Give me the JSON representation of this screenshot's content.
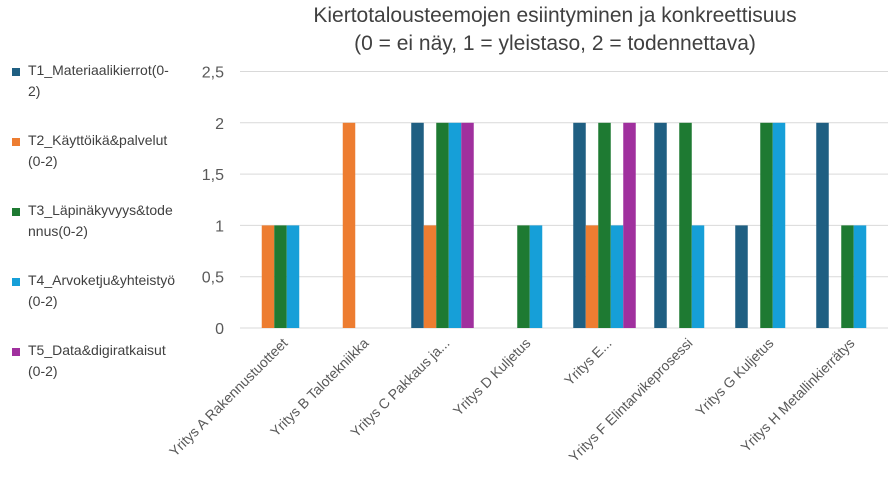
{
  "chart_data": {
    "type": "bar",
    "title": "Kiertotalousteemojen esiintyminen ja konkreettisuus",
    "subtitle": "(0 = ei näy, 1 = yleistaso, 2 = todennettava)",
    "xlabel": "",
    "ylabel": "",
    "ylim": [
      0,
      2.5
    ],
    "yticks": [
      "0",
      "0,5",
      "1",
      "1,5",
      "2",
      "2,5"
    ],
    "grid": true,
    "legend_position": "left",
    "categories": [
      "Yritys A Rakennustuotteet",
      "Yritys B Talotekniikka",
      "Yritys C Pakkaus ja...",
      "Yritys D Kuljetus",
      "Yritys E...",
      "Yritys F Elintarvikeprosessi",
      "Yritys G Kuljetus",
      "Yritys H Metallinkierrätys"
    ],
    "series": [
      {
        "name": "T1_Materiaalikierrot(0-2)",
        "color": "#1f5f82",
        "values": [
          0,
          0,
          2,
          0,
          2,
          2,
          1,
          2
        ]
      },
      {
        "name": "T2_Käyttöikä&palvelut(0-2)",
        "color": "#ed7d31",
        "values": [
          1,
          2,
          1,
          0,
          1,
          0,
          0,
          0
        ]
      },
      {
        "name": "T3_Läpinäkyvyys&todennus(0-2)",
        "color": "#1e7a32",
        "values": [
          1,
          0,
          2,
          1,
          2,
          2,
          2,
          1
        ]
      },
      {
        "name": "T4_Arvoketju&yhteistyö(0-2)",
        "color": "#169fd8",
        "values": [
          1,
          0,
          2,
          1,
          1,
          1,
          2,
          1
        ]
      },
      {
        "name": "T5_Data&digiratkaisut(0-2)",
        "color": "#a0309e",
        "values": [
          0,
          0,
          2,
          0,
          2,
          0,
          0,
          0
        ]
      }
    ]
  }
}
